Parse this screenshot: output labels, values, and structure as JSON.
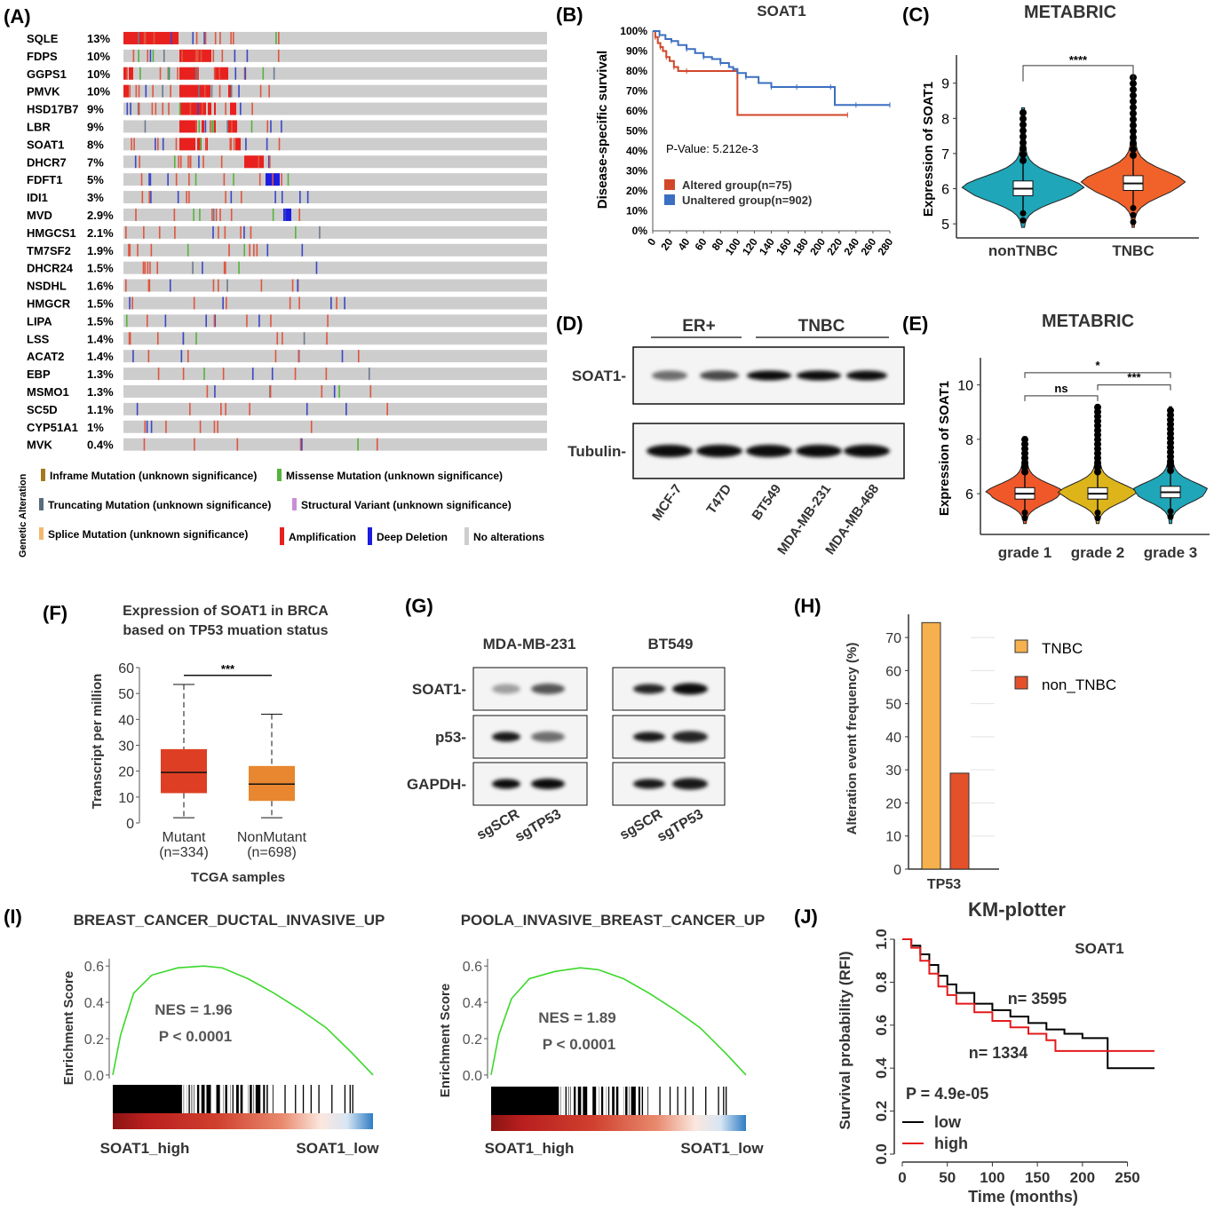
{
  "panel_letters": [
    "(A)",
    "(B)",
    "(C)",
    "(D)",
    "(E)",
    "(F)",
    "(G)",
    "(H)",
    "(I)",
    "(J)"
  ],
  "colors": {
    "amplification": "#e8211f",
    "deep_deletion": "#1c1ce0",
    "no_alteration": "#cdcdcd",
    "missense": "#55b33c",
    "truncating": "#5a6b7e",
    "altered": "#d2462a",
    "unaltered": "#3a6fc1",
    "tnbc_violin": "#f0622a",
    "nontnbc_violin": "#1fa6b8",
    "grade1": "#f0582a",
    "grade2": "#ddb51a",
    "grade3": "#1fa6b8",
    "mutant_box": "#de3f24",
    "nonmutant_box": "#e8872f",
    "tnbc_bar": "#f6b04d",
    "non_tnbc_bar": "#e4502a",
    "gsea_curve": "#3bd82a",
    "km_low": "#000000",
    "km_high": "#e31a1c"
  },
  "chart_data": [
    {
      "panel": "A",
      "type": "heatmap",
      "genes": [
        "SQLE",
        "FDPS",
        "GGPS1",
        "PMVK",
        "HSD17B7",
        "LBR",
        "SOAT1",
        "DHCR7",
        "FDFT1",
        "IDI1",
        "MVD",
        "HMGCS1",
        "TM7SF2",
        "DHCR24",
        "NSDHL",
        "HMGCR",
        "LIPA",
        "LSS",
        "ACAT2",
        "EBP",
        "MSMO1",
        "SC5D",
        "CYP51A1",
        "MVK"
      ],
      "frequencies": [
        "13%",
        "10%",
        "10%",
        "10%",
        "9%",
        "9%",
        "8%",
        "7%",
        "5%",
        "3%",
        "2.9%",
        "2.1%",
        "1.9%",
        "1.5%",
        "1.6%",
        "1.5%",
        "1.5%",
        "1.4%",
        "1.4%",
        "1.3%",
        "1.3%",
        "1.1%",
        "1%",
        "0.4%"
      ],
      "legend_title": "Genetic Alteration",
      "legend": [
        "Inframe Mutation (unknown significance)",
        "Missense Mutation (unknown significance)",
        "Truncating Mutation (unknown significance)",
        "Structural Variant (unknown significance)",
        "Splice Mutation (unknown significance)",
        "Amplification",
        "Deep Deletion",
        "No alterations"
      ]
    },
    {
      "panel": "B",
      "type": "line",
      "title": "SOAT1",
      "ylabel": "Disease-specific survival",
      "x_ticks": [
        "0",
        "20",
        "40",
        "60",
        "80",
        "100",
        "120",
        "140",
        "160",
        "180",
        "200",
        "220",
        "240",
        "260",
        "280"
      ],
      "y_ticks": [
        "0%",
        "10%",
        "20%",
        "30%",
        "40%",
        "50%",
        "60%",
        "70%",
        "80%",
        "90%",
        "100%"
      ],
      "xlim": [
        0,
        280
      ],
      "ylim": [
        0,
        100
      ],
      "annotation": "P-Value: 5.212e-3",
      "series": [
        {
          "name": "Altered group(n=75)",
          "x": [
            0,
            3,
            6,
            9,
            12,
            16,
            20,
            25,
            30,
            40,
            50,
            100,
            100,
            230
          ],
          "y": [
            100,
            97,
            94,
            92,
            90,
            87,
            85,
            82,
            80,
            80,
            80,
            80,
            58,
            58
          ]
        },
        {
          "name": "Unaltered group(n=902)",
          "x": [
            0,
            8,
            15,
            22,
            30,
            40,
            50,
            60,
            70,
            80,
            90,
            95,
            100,
            110,
            125,
            140,
            150,
            170,
            190,
            210,
            215,
            240,
            260,
            280
          ],
          "y": [
            100,
            98,
            96,
            95,
            93,
            91,
            89,
            87,
            86,
            84,
            82,
            81,
            79,
            77,
            74,
            72,
            72,
            72,
            72,
            72,
            63,
            63,
            63,
            63
          ]
        }
      ]
    },
    {
      "panel": "C",
      "type": "violin",
      "title": "METABRIC",
      "ylabel": "Expression of SOAT1",
      "categories": [
        "nonTNBC",
        "TNBC"
      ],
      "y_ticks": [
        "5",
        "6",
        "7",
        "8",
        "9"
      ],
      "ylim": [
        4.6,
        9.8
      ],
      "medians": [
        6.0,
        6.15
      ],
      "significance": "****"
    },
    {
      "panel": "D",
      "type": "table",
      "groups": [
        "ER+",
        "TNBC"
      ],
      "rows": [
        "SOAT1-",
        "Tubulin-"
      ],
      "lanes": [
        "MCF-7",
        "T47D",
        "BT549",
        "MDA-MB-231",
        "MDA-MB-468"
      ]
    },
    {
      "panel": "E",
      "type": "violin",
      "title": "METABRIC",
      "ylabel": "Expression of SOAT1",
      "categories": [
        "grade 1",
        "grade 2",
        "grade 3"
      ],
      "y_ticks": [
        "6",
        "8",
        "10"
      ],
      "ylim": [
        4.5,
        11.0
      ],
      "medians": [
        6.0,
        6.0,
        6.05
      ],
      "comparisons": [
        {
          "pair": "grade 1 vs grade 3",
          "label": "*"
        },
        {
          "pair": "grade 1 vs grade 2",
          "label": "ns"
        },
        {
          "pair": "grade 2 vs grade 3",
          "label": "***"
        }
      ]
    },
    {
      "panel": "F",
      "type": "box",
      "title": "Expression of SOAT1 in BRCA based on TP53 muation status",
      "title_lines": [
        "Expression of SOAT1 in BRCA",
        "based on TP53 muation status"
      ],
      "ylabel": "Transcript per million",
      "xlabel": "TCGA samples",
      "categories": [
        "Mutant",
        "NonMutant"
      ],
      "category_n": [
        "(n=334)",
        "(n=698)"
      ],
      "y_ticks": [
        "0",
        "10",
        "20",
        "30",
        "40",
        "50",
        "60"
      ],
      "ylim": [
        0,
        60
      ],
      "boxes": [
        {
          "name": "Mutant",
          "min": 2,
          "q1": 11.5,
          "median": 19.5,
          "q3": 28.5,
          "max": 53.5
        },
        {
          "name": "NonMutant",
          "min": 2,
          "q1": 8.5,
          "median": 15,
          "q3": 22,
          "max": 42
        }
      ],
      "significance": "***"
    },
    {
      "panel": "G",
      "type": "table",
      "cell_lines": [
        "MDA-MB-231",
        "BT549"
      ],
      "rows": [
        "SOAT1-",
        "p53-",
        "GAPDH-"
      ],
      "lanes": [
        "sgSCR",
        "sgTP53",
        "sgSCR",
        "sgTP53"
      ]
    },
    {
      "panel": "H",
      "type": "bar",
      "ylabel": "Alteration event frequency (%)",
      "categories": [
        "TP53"
      ],
      "series": [
        {
          "name": "TNBC",
          "values": [
            74.5
          ]
        },
        {
          "name": "non_TNBC",
          "values": [
            29
          ]
        }
      ],
      "y_ticks": [
        "0",
        "10",
        "20",
        "30",
        "40",
        "50",
        "60",
        "70"
      ],
      "ylim": [
        0,
        77
      ]
    },
    {
      "panel": "I-left",
      "type": "line",
      "title": "BREAST_CANCER_DUCTAL_INVASIVE_UP",
      "ylabel": "Enrichment Score",
      "y_ticks": [
        "0.0",
        "0.2",
        "0.4",
        "0.6"
      ],
      "ylim": [
        -0.02,
        0.64
      ],
      "annotations": [
        "NES = 1.96",
        "P < 0.0001"
      ],
      "x_end_labels": [
        "SOAT1_high",
        "SOAT1_low"
      ],
      "es_points": [
        [
          0,
          0
        ],
        [
          0.03,
          0.22
        ],
        [
          0.08,
          0.45
        ],
        [
          0.15,
          0.55
        ],
        [
          0.25,
          0.59
        ],
        [
          0.35,
          0.6
        ],
        [
          0.42,
          0.59
        ],
        [
          0.52,
          0.53
        ],
        [
          0.62,
          0.45
        ],
        [
          0.72,
          0.36
        ],
        [
          0.82,
          0.26
        ],
        [
          0.92,
          0.12
        ],
        [
          1.0,
          0.0
        ]
      ]
    },
    {
      "panel": "I-right",
      "type": "line",
      "title": "POOLA_INVASIVE_BREAST_CANCER_UP",
      "ylabel": "Enrichment Score",
      "y_ticks": [
        "0.0",
        "0.2",
        "0.4",
        "0.6"
      ],
      "ylim": [
        -0.02,
        0.64
      ],
      "annotations": [
        "NES = 1.89",
        "P < 0.0001"
      ],
      "x_end_labels": [
        "SOAT1_high",
        "SOAT1_low"
      ],
      "es_points": [
        [
          0,
          0
        ],
        [
          0.03,
          0.22
        ],
        [
          0.08,
          0.42
        ],
        [
          0.15,
          0.53
        ],
        [
          0.25,
          0.57
        ],
        [
          0.35,
          0.59
        ],
        [
          0.42,
          0.58
        ],
        [
          0.52,
          0.53
        ],
        [
          0.62,
          0.45
        ],
        [
          0.72,
          0.36
        ],
        [
          0.82,
          0.26
        ],
        [
          0.92,
          0.12
        ],
        [
          1.0,
          0.0
        ]
      ]
    },
    {
      "panel": "J",
      "type": "line",
      "title": "KM-plotter",
      "subtitle": "SOAT1",
      "ylabel": "Survival probability (RFI)",
      "xlabel": "Time (months)",
      "x_ticks": [
        "0",
        "50",
        "100",
        "150",
        "200",
        "250"
      ],
      "y_ticks": [
        "0.0",
        "0.2",
        "0.4",
        "0.6",
        "0.8",
        "1.0"
      ],
      "xlim": [
        0,
        280
      ],
      "ylim": [
        0,
        1
      ],
      "annotations": [
        "n= 3595",
        "n= 1334",
        "P = 4.9e-05"
      ],
      "series": [
        {
          "name": "low",
          "x": [
            0,
            10,
            20,
            30,
            40,
            50,
            60,
            80,
            100,
            120,
            140,
            160,
            180,
            200,
            215,
            225,
            228,
            280
          ],
          "y": [
            1.0,
            0.97,
            0.93,
            0.88,
            0.83,
            0.79,
            0.75,
            0.7,
            0.67,
            0.64,
            0.61,
            0.58,
            0.56,
            0.54,
            0.54,
            0.54,
            0.4,
            0.4
          ]
        },
        {
          "name": "high",
          "x": [
            0,
            10,
            20,
            30,
            40,
            50,
            60,
            80,
            100,
            120,
            140,
            160,
            168,
            170,
            200,
            230,
            280
          ],
          "y": [
            1.0,
            0.96,
            0.9,
            0.84,
            0.78,
            0.74,
            0.7,
            0.66,
            0.62,
            0.59,
            0.56,
            0.53,
            0.53,
            0.48,
            0.48,
            0.48,
            0.48
          ]
        }
      ]
    }
  ]
}
